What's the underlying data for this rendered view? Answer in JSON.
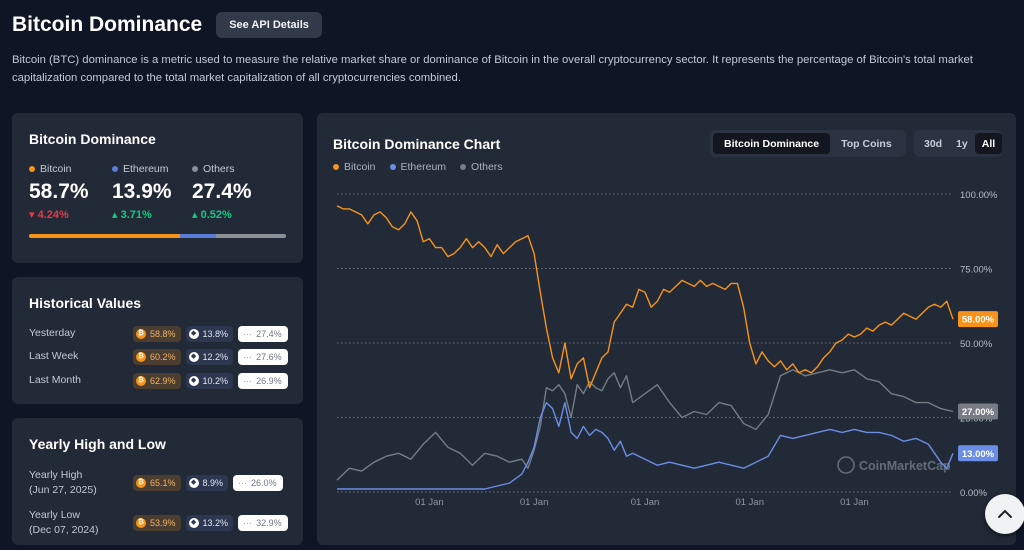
{
  "header": {
    "title": "Bitcoin Dominance",
    "api_button": "See API Details"
  },
  "description": "Bitcoin (BTC) dominance is a metric used to measure the relative market share or dominance of Bitcoin in the overall cryptocurrency sector. It represents the percentage of Bitcoin's total market capitalization compared to the total market capitalization of all cryptocurrencies combined.",
  "dominance_card": {
    "title": "Bitcoin Dominance",
    "items": [
      {
        "label": "Bitcoin",
        "value": "58.7%",
        "change": "4.24%",
        "direction": "down",
        "color": "#f7931a",
        "share": 58.7
      },
      {
        "label": "Ethereum",
        "value": "13.9%",
        "change": "3.71%",
        "direction": "up",
        "color": "#5b7bd9",
        "share": 13.9
      },
      {
        "label": "Others",
        "value": "27.4%",
        "change": "0.52%",
        "direction": "up",
        "color": "#8a8f98",
        "share": 27.4
      }
    ]
  },
  "historical": {
    "title": "Historical Values",
    "rows": [
      {
        "label": "Yesterday",
        "btc": "58.8%",
        "eth": "13.8%",
        "others": "27.4%"
      },
      {
        "label": "Last Week",
        "btc": "60.2%",
        "eth": "12.2%",
        "others": "27.6%"
      },
      {
        "label": "Last Month",
        "btc": "62.9%",
        "eth": "10.2%",
        "others": "26.9%"
      }
    ]
  },
  "yearly": {
    "title": "Yearly High and Low",
    "rows": [
      {
        "label": "Yearly High",
        "date": "(Jun 27, 2025)",
        "btc": "65.1%",
        "eth": "8.9%",
        "others": "26.0%"
      },
      {
        "label": "Yearly Low",
        "date": "(Dec 07, 2024)",
        "btc": "53.9%",
        "eth": "13.2%",
        "others": "32.9%"
      }
    ]
  },
  "chart_panel": {
    "tabs": [
      "Bitcoin Dominance",
      "Top Coins"
    ],
    "active_tab": "Bitcoin Dominance",
    "ranges": [
      "30d",
      "1y",
      "All"
    ],
    "active_range": "All",
    "watermark": "CoinMarketCap"
  },
  "chart_data": {
    "type": "line",
    "title": "Bitcoin Dominance Chart",
    "y_ticks": [
      "100.00%",
      "75.00%",
      "50.00%",
      "25.00%",
      "0.00%"
    ],
    "ylim": [
      0,
      100
    ],
    "x_ticks": [
      "01 Jan",
      "01 Jan",
      "01 Jan",
      "01 Jan",
      "01 Jan"
    ],
    "x_tick_positions": [
      0.15,
      0.32,
      0.5,
      0.67,
      0.84
    ],
    "grid": true,
    "legend_position": "top-left",
    "series": [
      {
        "name": "Bitcoin",
        "color": "#f7931a",
        "end_label": "58.00%",
        "x": [
          0,
          0.01,
          0.02,
          0.03,
          0.04,
          0.05,
          0.06,
          0.07,
          0.08,
          0.09,
          0.1,
          0.11,
          0.12,
          0.13,
          0.14,
          0.15,
          0.16,
          0.17,
          0.18,
          0.19,
          0.2,
          0.21,
          0.22,
          0.23,
          0.24,
          0.25,
          0.26,
          0.27,
          0.28,
          0.29,
          0.3,
          0.31,
          0.32,
          0.33,
          0.34,
          0.35,
          0.36,
          0.37,
          0.38,
          0.39,
          0.4,
          0.41,
          0.42,
          0.43,
          0.44,
          0.45,
          0.46,
          0.47,
          0.48,
          0.49,
          0.5,
          0.51,
          0.52,
          0.53,
          0.54,
          0.55,
          0.56,
          0.57,
          0.58,
          0.59,
          0.6,
          0.61,
          0.62,
          0.63,
          0.64,
          0.65,
          0.66,
          0.67,
          0.68,
          0.69,
          0.7,
          0.71,
          0.72,
          0.73,
          0.74,
          0.75,
          0.76,
          0.77,
          0.78,
          0.79,
          0.8,
          0.81,
          0.82,
          0.83,
          0.84,
          0.85,
          0.86,
          0.87,
          0.88,
          0.89,
          0.9,
          0.91,
          0.92,
          0.93,
          0.94,
          0.95,
          0.96,
          0.97,
          0.98,
          0.99,
          1
        ],
        "y": [
          96,
          95,
          95,
          94,
          93,
          90,
          93,
          94,
          92,
          89,
          88,
          90,
          94,
          91,
          84,
          85,
          82,
          82,
          79,
          80,
          82,
          85,
          82,
          84,
          82,
          79,
          83,
          80,
          82,
          84,
          85,
          86,
          80,
          67,
          55,
          45,
          40,
          50,
          38,
          43,
          45,
          35,
          40,
          45,
          47,
          57,
          60,
          63,
          62,
          68,
          67,
          62,
          64,
          68,
          67,
          69,
          71,
          70,
          69,
          71,
          69,
          70,
          69,
          68,
          70,
          70,
          62,
          50,
          43,
          47,
          44,
          42,
          44,
          41,
          43,
          40,
          41,
          40,
          42,
          45,
          47,
          50,
          51,
          53,
          52,
          53,
          55,
          54,
          56,
          57,
          56,
          58,
          60,
          59,
          58,
          60,
          62,
          63,
          62,
          64,
          58
        ]
      },
      {
        "name": "Ethereum",
        "color": "#6a8ee6",
        "end_label": "13.00%",
        "x": [
          0,
          0.02,
          0.04,
          0.06,
          0.08,
          0.1,
          0.12,
          0.14,
          0.16,
          0.18,
          0.2,
          0.22,
          0.24,
          0.26,
          0.28,
          0.3,
          0.31,
          0.32,
          0.33,
          0.34,
          0.35,
          0.36,
          0.37,
          0.38,
          0.39,
          0.4,
          0.41,
          0.42,
          0.43,
          0.44,
          0.45,
          0.46,
          0.47,
          0.48,
          0.5,
          0.52,
          0.54,
          0.56,
          0.58,
          0.6,
          0.62,
          0.64,
          0.66,
          0.68,
          0.7,
          0.72,
          0.74,
          0.76,
          0.78,
          0.8,
          0.82,
          0.84,
          0.86,
          0.88,
          0.9,
          0.92,
          0.94,
          0.96,
          0.98,
          0.99,
          1
        ],
        "y": [
          1,
          1,
          1,
          1,
          1,
          1,
          1,
          1,
          1,
          1,
          1,
          1,
          1,
          2,
          3,
          6,
          10,
          15,
          25,
          30,
          28,
          22,
          30,
          20,
          18,
          22,
          19,
          21,
          20,
          18,
          14,
          17,
          12,
          13,
          11,
          9,
          10,
          9,
          8,
          9,
          10,
          9,
          8,
          10,
          12,
          19,
          18,
          19,
          20,
          21,
          20,
          21,
          20,
          20,
          19,
          17,
          18,
          16,
          10,
          8,
          13
        ]
      },
      {
        "name": "Others",
        "color": "#767b84",
        "end_label": "27.00%",
        "x": [
          0,
          0.02,
          0.04,
          0.06,
          0.08,
          0.1,
          0.12,
          0.14,
          0.16,
          0.18,
          0.2,
          0.22,
          0.24,
          0.26,
          0.28,
          0.3,
          0.31,
          0.32,
          0.33,
          0.34,
          0.35,
          0.36,
          0.37,
          0.38,
          0.39,
          0.4,
          0.41,
          0.42,
          0.43,
          0.44,
          0.45,
          0.46,
          0.47,
          0.48,
          0.5,
          0.52,
          0.54,
          0.56,
          0.58,
          0.6,
          0.62,
          0.64,
          0.66,
          0.68,
          0.7,
          0.72,
          0.74,
          0.76,
          0.78,
          0.8,
          0.82,
          0.84,
          0.86,
          0.88,
          0.9,
          0.92,
          0.94,
          0.96,
          0.98,
          1
        ],
        "y": [
          4,
          8,
          7,
          10,
          12,
          13,
          11,
          16,
          20,
          15,
          13,
          9,
          13,
          12,
          10,
          11,
          8,
          14,
          22,
          35,
          34,
          36,
          33,
          25,
          36,
          33,
          37,
          35,
          34,
          38,
          40,
          35,
          39,
          30,
          33,
          36,
          30,
          25,
          27,
          26,
          30,
          29,
          23,
          21,
          26,
          39,
          41,
          39,
          40,
          41,
          40,
          41,
          38,
          37,
          33,
          32,
          30,
          30,
          28,
          27
        ]
      }
    ]
  }
}
